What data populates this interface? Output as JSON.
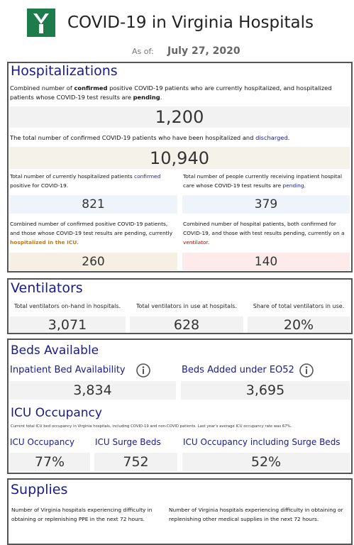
{
  "header": {
    "title": "COVID-19 in Virginia Hospitals",
    "as_of_label": "As of:",
    "date": "July 27, 2020"
  },
  "hospitalizations": {
    "heading": "Hospitalizations",
    "metrics": [
      {
        "desc": [
          {
            "text": "Combined number of "
          },
          {
            "text": "confirmed",
            "style": "bold"
          },
          {
            "text": " positive COVID-19 patients who are currently hospitalized, and hospitalized patients whose COVID-19 test results are "
          },
          {
            "text": "pending",
            "style": "bold"
          },
          {
            "text": "."
          }
        ],
        "value": "1,200"
      },
      {
        "desc": [
          {
            "text": "The total number of confirmed COVID-19 patients who have been hospitalized and "
          },
          {
            "text": "discharged",
            "style": "blue"
          },
          {
            "text": "."
          }
        ],
        "value": "10,940"
      },
      {
        "desc": [
          {
            "text": "Total number of currently hospitalized patients "
          },
          {
            "text": "confirmed",
            "style": "blue"
          },
          {
            "text": " positive for COVID-19."
          }
        ],
        "value": "821"
      },
      {
        "desc": [
          {
            "text": "Total number of people currently receiving inpatient hospital care whose COVID-19 test results are "
          },
          {
            "text": "pending",
            "style": "blue"
          },
          {
            "text": "."
          }
        ],
        "value": "379"
      },
      {
        "desc": [
          {
            "text": "Combined number of confirmed positive COVID-19 patients, and those whose COVID-19 test results are pending, currently "
          },
          {
            "text": "hospitalized in the ICU",
            "style": "orange"
          },
          {
            "text": "."
          }
        ],
        "value": "260"
      },
      {
        "desc": [
          {
            "text": "Combined number of hospital patients, both confirmed for COVID-19, and those with test results pending, currently on a "
          },
          {
            "text": "ventilator",
            "style": "red"
          },
          {
            "text": "."
          }
        ],
        "value": "140"
      }
    ]
  },
  "ventilators": {
    "heading": "Ventilators",
    "metrics": [
      {
        "label": "Total ventilators on-hand in hospitals.",
        "value": "3,071"
      },
      {
        "label": "Total ventilators in use at hospitals.",
        "value": "628"
      },
      {
        "label": "Share of total ventilators in use.",
        "value": "20%"
      }
    ]
  },
  "beds": {
    "heading": "Beds Available",
    "metrics": [
      {
        "label": "Inpatient Bed Availability",
        "value": "3,834"
      },
      {
        "label": "Beds Added under EO52",
        "value": "3,695"
      }
    ],
    "icu_heading": "ICU Occupancy",
    "icu_note": "Current total ICU bed occupancy in Virginia hospitals, including COVID-19 and non-COVID patients. Last year's average ICU occupancy rate was 67%.",
    "icu_metrics": [
      {
        "label": "ICU Occupancy",
        "value": "77%"
      },
      {
        "label": "ICU Surge Beds",
        "value": "752"
      },
      {
        "label": "ICU Occupancy including Surge Beds",
        "value": "52%"
      }
    ]
  },
  "supplies": {
    "heading": "Supplies",
    "metrics": [
      {
        "label": "Number of Virginia hospitals experiencing difficulty in obtaining or replenishing PPE in the next 72 hours."
      },
      {
        "label": "Number of Virginia hospitals experiencing difficulty in obtaining or replenishing other medical supplies in the next 72 hours."
      }
    ]
  }
}
